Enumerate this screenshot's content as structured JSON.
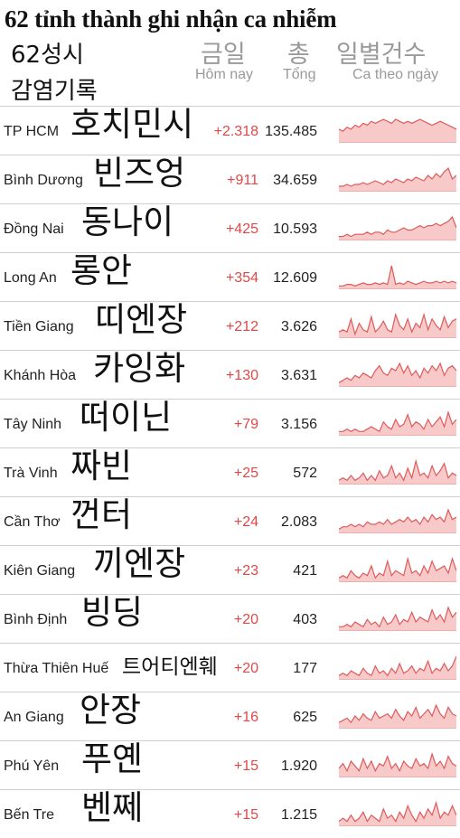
{
  "title": "62 tỉnh thành ghi nhận ca nhiễm",
  "subtitle_kr_line1": "62성시",
  "subtitle_kr_line2": "감염기록",
  "columns": {
    "today_kr": "금일",
    "today_vi": "Hôm nay",
    "total_kr": "총",
    "total_vi": "Tổng",
    "daily_kr": "일별건수",
    "daily_vi": "Ca theo ngày"
  },
  "colors": {
    "increase": "#e04848",
    "spark_line": "#e05a5a",
    "spark_fill": "#f8c9c9",
    "divider": "#cfcfcf"
  },
  "rows": [
    {
      "name": "TP HCM",
      "kr": "호치민시",
      "today": "+2.318",
      "total": "135.485",
      "spark": [
        6,
        5,
        7,
        6,
        8,
        7,
        9,
        8,
        10,
        9,
        10,
        11,
        10,
        9,
        11,
        10,
        9,
        10,
        9,
        10,
        11,
        10,
        9,
        8,
        9,
        10,
        9,
        8,
        7,
        6
      ]
    },
    {
      "name": "Bình Dương",
      "kr": "빈즈엉",
      "today": "+911",
      "total": "34.659",
      "spark": [
        2,
        2,
        3,
        2,
        3,
        3,
        4,
        3,
        4,
        5,
        4,
        3,
        5,
        4,
        6,
        5,
        4,
        6,
        5,
        7,
        6,
        5,
        8,
        6,
        9,
        7,
        10,
        12,
        6,
        8
      ]
    },
    {
      "name": "Đồng Nai",
      "kr": "동나이",
      "today": "+425",
      "total": "10.593",
      "spark": [
        1,
        1,
        2,
        1,
        2,
        2,
        2,
        3,
        2,
        3,
        3,
        2,
        4,
        3,
        3,
        4,
        5,
        4,
        4,
        5,
        6,
        5,
        6,
        6,
        7,
        6,
        7,
        8,
        10,
        5
      ]
    },
    {
      "name": "Long An",
      "kr": "롱안",
      "today": "+354",
      "total": "12.609",
      "spark": [
        1,
        1,
        2,
        2,
        1,
        2,
        3,
        2,
        2,
        3,
        2,
        3,
        2,
        14,
        2,
        3,
        2,
        4,
        3,
        2,
        3,
        4,
        3,
        3,
        4,
        3,
        4,
        3,
        4,
        3
      ]
    },
    {
      "name": "Tiền Giang",
      "kr": "띠엔장",
      "today": "+212",
      "total": "3.626",
      "spark": [
        2,
        3,
        2,
        8,
        1,
        6,
        3,
        2,
        9,
        2,
        4,
        7,
        3,
        2,
        10,
        5,
        3,
        8,
        2,
        6,
        4,
        10,
        3,
        8,
        5,
        3,
        9,
        4,
        7,
        8
      ]
    },
    {
      "name": "Khánh Hòa",
      "kr": "카잉화",
      "today": "+130",
      "total": "3.631",
      "spark": [
        1,
        2,
        3,
        2,
        4,
        3,
        5,
        4,
        3,
        6,
        8,
        5,
        4,
        7,
        6,
        9,
        5,
        8,
        4,
        6,
        3,
        7,
        5,
        8,
        6,
        9,
        4,
        7,
        8,
        6
      ]
    },
    {
      "name": "Tây Ninh",
      "kr": "떠이닌",
      "today": "+79",
      "total": "3.156",
      "spark": [
        1,
        1,
        2,
        1,
        2,
        1,
        1,
        2,
        3,
        2,
        1,
        5,
        3,
        2,
        6,
        3,
        4,
        8,
        3,
        5,
        4,
        2,
        6,
        3,
        5,
        7,
        3,
        9,
        4,
        6
      ]
    },
    {
      "name": "Trà Vinh",
      "kr": "짜빈",
      "today": "+25",
      "total": "572",
      "spark": [
        1,
        2,
        1,
        3,
        1,
        2,
        4,
        1,
        3,
        1,
        5,
        2,
        3,
        7,
        2,
        4,
        1,
        6,
        2,
        9,
        3,
        4,
        2,
        7,
        3,
        5,
        8,
        2,
        4,
        3
      ]
    },
    {
      "name": "Cần Thơ",
      "kr": "껀터",
      "today": "+24",
      "total": "2.083",
      "spark": [
        1,
        2,
        2,
        3,
        2,
        3,
        2,
        4,
        3,
        3,
        4,
        3,
        5,
        3,
        4,
        5,
        4,
        6,
        4,
        5,
        3,
        6,
        4,
        7,
        5,
        6,
        4,
        9,
        5,
        6
      ]
    },
    {
      "name": "Kiên Giang",
      "kr": "끼엔장",
      "today": "+23",
      "total": "421",
      "spark": [
        1,
        2,
        1,
        4,
        2,
        1,
        3,
        2,
        6,
        1,
        3,
        2,
        8,
        2,
        4,
        3,
        2,
        9,
        3,
        4,
        2,
        6,
        3,
        8,
        4,
        5,
        6,
        3,
        9,
        4
      ]
    },
    {
      "name": "Bình Định",
      "kr": "빙딩",
      "today": "+20",
      "total": "403",
      "spark": [
        1,
        1,
        2,
        1,
        3,
        2,
        1,
        4,
        2,
        3,
        1,
        5,
        2,
        3,
        6,
        2,
        4,
        3,
        7,
        3,
        5,
        4,
        3,
        8,
        4,
        6,
        3,
        9,
        5,
        7
      ]
    },
    {
      "name": "Thừa Thiên Huế",
      "kr": "트어티엔훼",
      "today": "+20",
      "total": "177",
      "spark": [
        1,
        2,
        1,
        3,
        2,
        1,
        4,
        2,
        1,
        5,
        2,
        3,
        1,
        4,
        2,
        6,
        2,
        3,
        5,
        2,
        4,
        3,
        7,
        2,
        4,
        3,
        6,
        3,
        5,
        9
      ]
    },
    {
      "name": "An Giang",
      "kr": "안장",
      "today": "+16",
      "total": "625",
      "spark": [
        2,
        3,
        4,
        2,
        5,
        3,
        6,
        4,
        3,
        7,
        4,
        5,
        6,
        4,
        8,
        5,
        3,
        7,
        5,
        9,
        4,
        6,
        8,
        5,
        10,
        6,
        4,
        9,
        6,
        5
      ]
    },
    {
      "name": "Phú Yên",
      "kr": "푸옌",
      "today": "+15",
      "total": "1.920",
      "spark": [
        3,
        5,
        2,
        6,
        4,
        2,
        7,
        3,
        6,
        2,
        5,
        4,
        8,
        3,
        5,
        2,
        6,
        4,
        3,
        7,
        4,
        5,
        3,
        9,
        4,
        6,
        3,
        8,
        5,
        4
      ]
    },
    {
      "name": "Bến Tre",
      "kr": "벤쩨",
      "today": "+15",
      "total": "1.215",
      "spark": [
        1,
        2,
        1,
        3,
        1,
        2,
        4,
        1,
        3,
        2,
        1,
        5,
        2,
        3,
        1,
        4,
        2,
        6,
        3,
        1,
        4,
        2,
        5,
        3,
        7,
        2,
        4,
        3,
        6,
        3
      ]
    }
  ]
}
